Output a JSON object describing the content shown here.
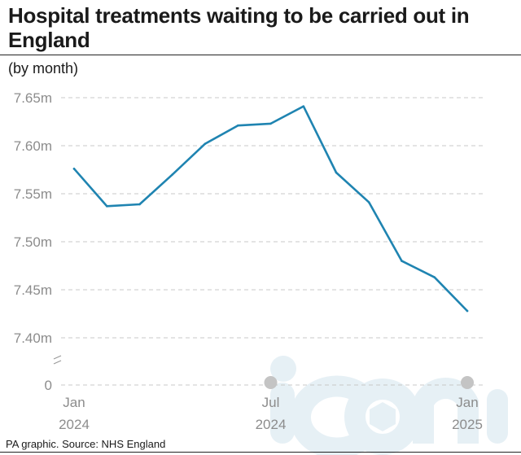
{
  "header": {
    "title": "Hospital treatments waiting to be carried out in England",
    "subtitle": "(by month)"
  },
  "footer": {
    "source": "PA graphic. Source: NHS England",
    "watermark": "iconic"
  },
  "colors": {
    "line": "#1f84b1",
    "grid": "#c8c8c8",
    "axis_text": "#8c8c8c"
  },
  "chart_data": {
    "type": "line",
    "title": "Hospital treatments waiting to be carried out in England",
    "subtitle": "(by month)",
    "x": [
      "2024-01",
      "2024-02",
      "2024-03",
      "2024-04",
      "2024-05",
      "2024-06",
      "2024-07",
      "2024-08",
      "2024-09",
      "2024-10",
      "2024-11",
      "2024-12",
      "2025-01"
    ],
    "series": [
      {
        "values": [
          7.576,
          7.537,
          7.539,
          7.57,
          7.602,
          7.621,
          7.623,
          7.641,
          7.572,
          7.541,
          7.48,
          7.463,
          7.428
        ]
      }
    ],
    "ylim": [
      7.4,
      7.65
    ],
    "y_ticks": [
      {
        "value": 7.65,
        "label": "7.65m"
      },
      {
        "value": 7.6,
        "label": "7.60m"
      },
      {
        "value": 7.55,
        "label": "7.55m"
      },
      {
        "value": 7.5,
        "label": "7.50m"
      },
      {
        "value": 7.45,
        "label": "7.45m"
      },
      {
        "value": 7.4,
        "label": "7.40m"
      }
    ],
    "y_zero_label": "0",
    "y_axis_break": true,
    "x_ticks": [
      {
        "month": "Jan",
        "year": "2024"
      },
      {
        "month": "Jul",
        "year": "2024"
      },
      {
        "month": "Jan",
        "year": "2025"
      }
    ],
    "grid": true
  }
}
